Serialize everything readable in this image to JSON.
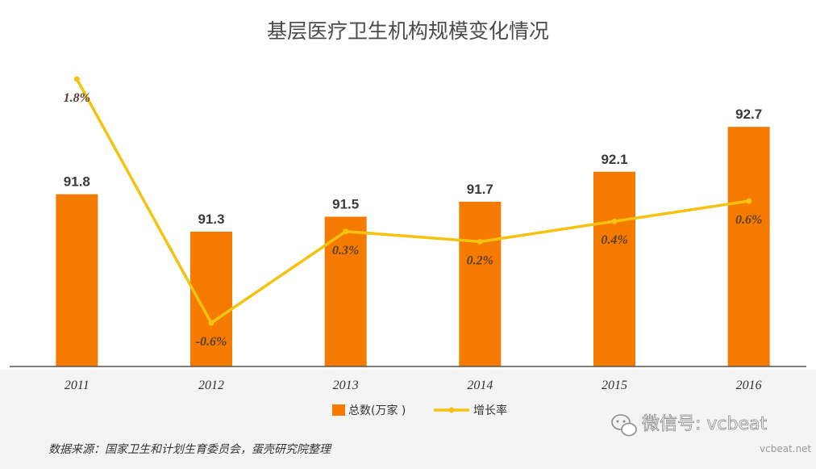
{
  "colors": {
    "bar": "#f47b00",
    "line": "#f5c20f",
    "axis": "#555555",
    "footer_bg": "#f4f4f4"
  },
  "chart_data": {
    "type": "bar",
    "title": "基层医疗卫生机构规模变化情况",
    "categories": [
      "2011",
      "2012",
      "2013",
      "2014",
      "2015",
      "2016"
    ],
    "ylim": [
      89.5,
      93.1
    ],
    "series": [
      {
        "name": "总数(万家 )",
        "type": "bar",
        "values": [
          91.8,
          91.3,
          91.5,
          91.7,
          92.1,
          92.7
        ],
        "labels": [
          "91.8",
          "91.3",
          "91.5",
          "91.7",
          "92.1",
          "92.7"
        ]
      },
      {
        "name": "增长率",
        "type": "line",
        "values": [
          1.8,
          -0.6,
          0.3,
          0.2,
          0.4,
          0.6
        ],
        "labels": [
          "1.8%",
          "-0.6%",
          "0.3%",
          "0.2%",
          "0.4%",
          "0.6%"
        ],
        "ylim": [
          -0.6,
          1.8
        ]
      }
    ],
    "legend": {
      "position": "bottom",
      "bar_label": "总数(万家 )",
      "line_label": "增长率"
    },
    "source": "数据来源：国家卫生和计划生育委员会，蛋壳研究院整理"
  },
  "watermark": {
    "main": "微信号: vcbeat",
    "sub": "vcbeat.net",
    "icon": "wechat-icon"
  }
}
